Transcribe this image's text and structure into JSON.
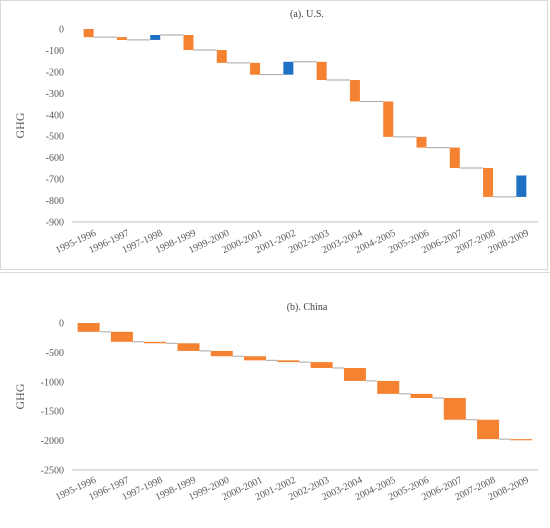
{
  "colors": {
    "increase": "#1f6fc4",
    "decrease": "#f58231",
    "connector": "#a6a6a6",
    "axis": "#bfbfbf",
    "grid": "#d9d9d9"
  },
  "chart_data": [
    {
      "type": "waterfall",
      "title": "(a). U.S.",
      "ylabel": "GHG",
      "ylim": [
        -900,
        0
      ],
      "yticks": [
        0,
        -100,
        -200,
        -300,
        -400,
        -500,
        -600,
        -700,
        -800,
        -900
      ],
      "categories": [
        "1995-1996",
        "1996-1997",
        "1997-1998",
        "1998-1999",
        "1999-2000",
        "2000-2001",
        "2001-2002",
        "2002-2003",
        "2003-2004",
        "2004-2005",
        "2005-2006",
        "2006-2007",
        "2007-2008",
        "2008-2009"
      ],
      "values": [
        -38,
        -13,
        23,
        -70,
        -60,
        -55,
        60,
        -85,
        -100,
        -165,
        -50,
        -95,
        -135,
        100
      ],
      "grid": false,
      "legend": "none"
    },
    {
      "type": "waterfall",
      "title": "(b). China",
      "ylabel": "GHG",
      "ylim": [
        -2500,
        0
      ],
      "yticks": [
        0,
        -500,
        -1000,
        -1500,
        -2000,
        -2500
      ],
      "categories": [
        "1995-1996",
        "1996-1997",
        "1997-1998",
        "1998-1999",
        "1999-2000",
        "2000-2001",
        "2001-2002",
        "2002-2003",
        "2003-2004",
        "2004-2005",
        "2005-2006",
        "2006-2007",
        "2007-2008",
        "2008-2009"
      ],
      "values": [
        -150,
        -170,
        -25,
        -130,
        -90,
        -70,
        -30,
        -100,
        -220,
        -220,
        -70,
        -370,
        -330,
        -20
      ],
      "grid": false,
      "legend": "none"
    }
  ]
}
